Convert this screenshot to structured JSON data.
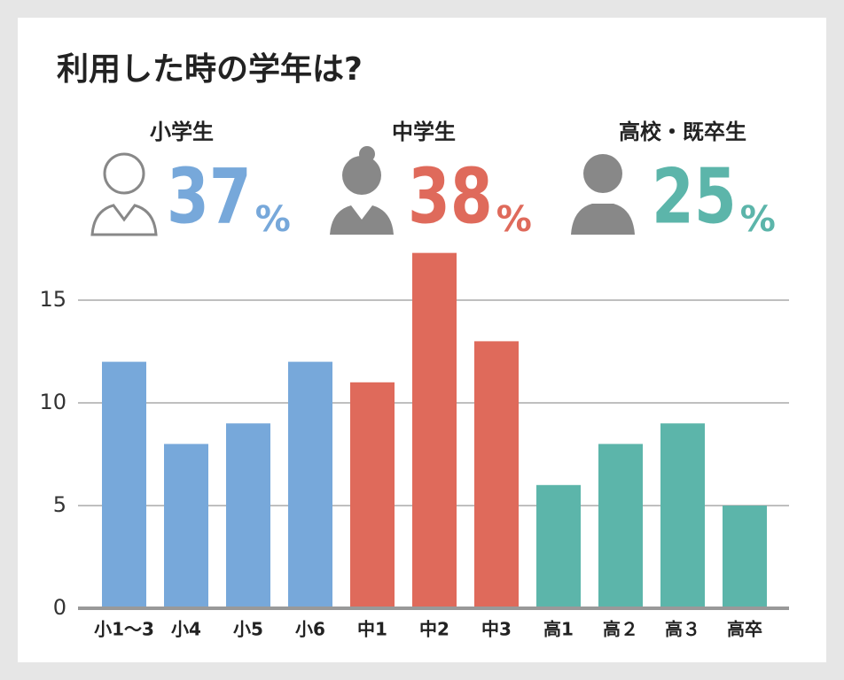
{
  "chart_data": {
    "type": "bar",
    "title": "利用した時の学年は?",
    "summary": [
      {
        "label": "小学生",
        "value": 37,
        "unit": "%",
        "color": "#77a8da"
      },
      {
        "label": "中学生",
        "value": 38,
        "unit": "%",
        "color": "#df6a5b"
      },
      {
        "label": "高校・既卒生",
        "value": 25,
        "unit": "%",
        "color": "#5cb5aa"
      }
    ],
    "categories": [
      "小1〜3",
      "小4",
      "小5",
      "小6",
      "中1",
      "中2",
      "中3",
      "高1",
      "高２",
      "高３",
      "高卒"
    ],
    "values": [
      12,
      8,
      9,
      12,
      11,
      17.3,
      13,
      6,
      8,
      9,
      5
    ],
    "colors": [
      "#77a8da",
      "#77a8da",
      "#77a8da",
      "#77a8da",
      "#df6a5b",
      "#df6a5b",
      "#df6a5b",
      "#5cb5aa",
      "#5cb5aa",
      "#5cb5aa",
      "#5cb5aa"
    ],
    "ylim": [
      0,
      17.5
    ],
    "yticks": [
      0,
      5,
      10,
      15
    ],
    "grid": true
  }
}
